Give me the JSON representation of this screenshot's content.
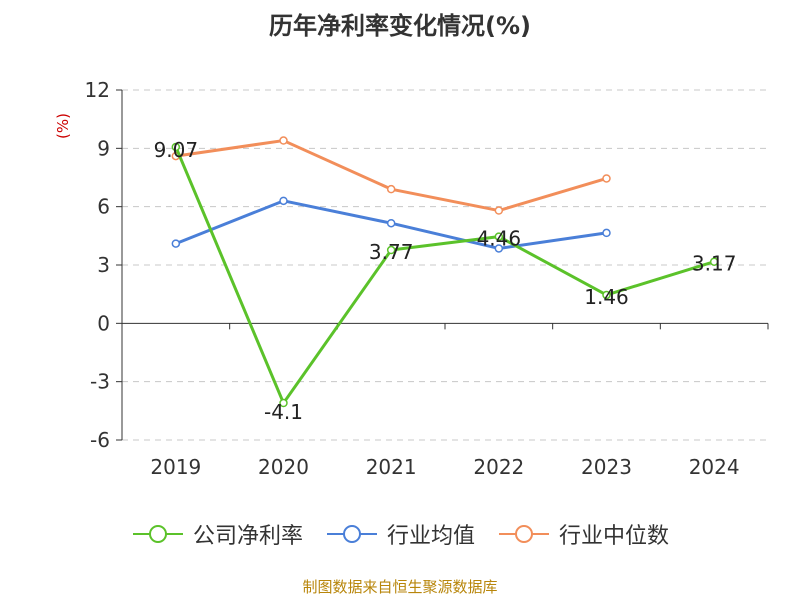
{
  "title": "历年净利率变化情况(%)",
  "source": "制图数据来自恒生聚源数据库",
  "chart_data": {
    "type": "line",
    "title": "历年净利率变化情况(%)",
    "ylabel": "(%)",
    "xlabel": "",
    "categories": [
      "2019",
      "2020",
      "2021",
      "2022",
      "2023",
      "2024"
    ],
    "ylim": [
      -6,
      12
    ],
    "yticks": [
      -6,
      -3,
      0,
      3,
      6,
      9,
      12
    ],
    "grid": true,
    "legend_position": "bottom",
    "series": [
      {
        "name": "公司净利率",
        "color": "#5bc22a",
        "values": [
          9.07,
          -4.1,
          3.77,
          4.46,
          1.46,
          3.17
        ],
        "labels": [
          "9.07",
          "-4.1",
          "3.77",
          "4.46",
          "1.46",
          "3.17"
        ]
      },
      {
        "name": "行业均值",
        "color": "#4a7fd8",
        "values": [
          4.1,
          6.3,
          5.15,
          3.85,
          4.65,
          null
        ]
      },
      {
        "name": "行业中位数",
        "color": "#f28e5a",
        "values": [
          8.6,
          9.4,
          6.9,
          5.8,
          7.45,
          null
        ]
      }
    ]
  }
}
